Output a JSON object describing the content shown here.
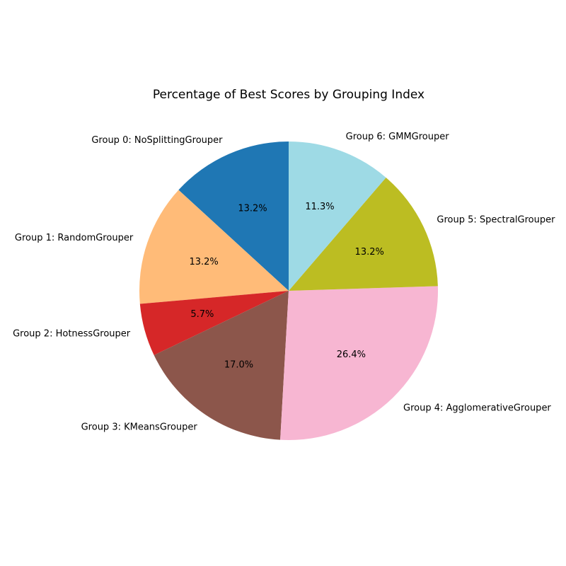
{
  "chart_data": {
    "type": "pie",
    "title": "Percentage of Best Scores by Grouping Index",
    "categories": [
      "Group 0: NoSplittingGrouper",
      "Group 1: RandomGrouper",
      "Group 2: HotnessGrouper",
      "Group 3: KMeansGrouper",
      "Group 4: AgglomerativeGrouper",
      "Group 5: SpectralGrouper",
      "Group 6: GMMGrouper"
    ],
    "values": [
      13.2,
      13.2,
      5.7,
      17.0,
      26.4,
      13.2,
      11.3
    ],
    "value_labels": [
      "13.2%",
      "13.2%",
      "5.7%",
      "17.0%",
      "26.4%",
      "13.2%",
      "11.3%"
    ],
    "colors": [
      "#1f77b4",
      "#ffbb78",
      "#d62728",
      "#8c564b",
      "#f7b6d2",
      "#bcbd22",
      "#9edae5"
    ],
    "start_angle_deg": 90,
    "direction": "counterclockwise",
    "legend": "none"
  }
}
